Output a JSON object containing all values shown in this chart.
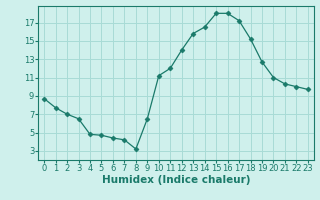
{
  "x": [
    0,
    1,
    2,
    3,
    4,
    5,
    6,
    7,
    8,
    9,
    10,
    11,
    12,
    13,
    14,
    15,
    16,
    17,
    18,
    19,
    20,
    21,
    22,
    23
  ],
  "y": [
    8.7,
    7.7,
    7.0,
    6.5,
    4.8,
    4.7,
    4.4,
    4.2,
    3.2,
    6.5,
    11.2,
    12.0,
    14.0,
    15.8,
    16.5,
    18.0,
    18.0,
    17.2,
    15.2,
    12.7,
    11.0,
    10.3,
    10.0,
    9.7
  ],
  "line_color": "#1a7a6a",
  "marker": "D",
  "marker_size": 2.5,
  "bg_color": "#cff0ec",
  "grid_color": "#a8dbd6",
  "xlabel": "Humidex (Indice chaleur)",
  "xlim": [
    -0.5,
    23.5
  ],
  "ylim": [
    2,
    18.8
  ],
  "yticks": [
    3,
    5,
    7,
    9,
    11,
    13,
    15,
    17
  ],
  "xticks": [
    0,
    1,
    2,
    3,
    4,
    5,
    6,
    7,
    8,
    9,
    10,
    11,
    12,
    13,
    14,
    15,
    16,
    17,
    18,
    19,
    20,
    21,
    22,
    23
  ],
  "tick_fontsize": 6.0,
  "xlabel_fontsize": 7.5
}
